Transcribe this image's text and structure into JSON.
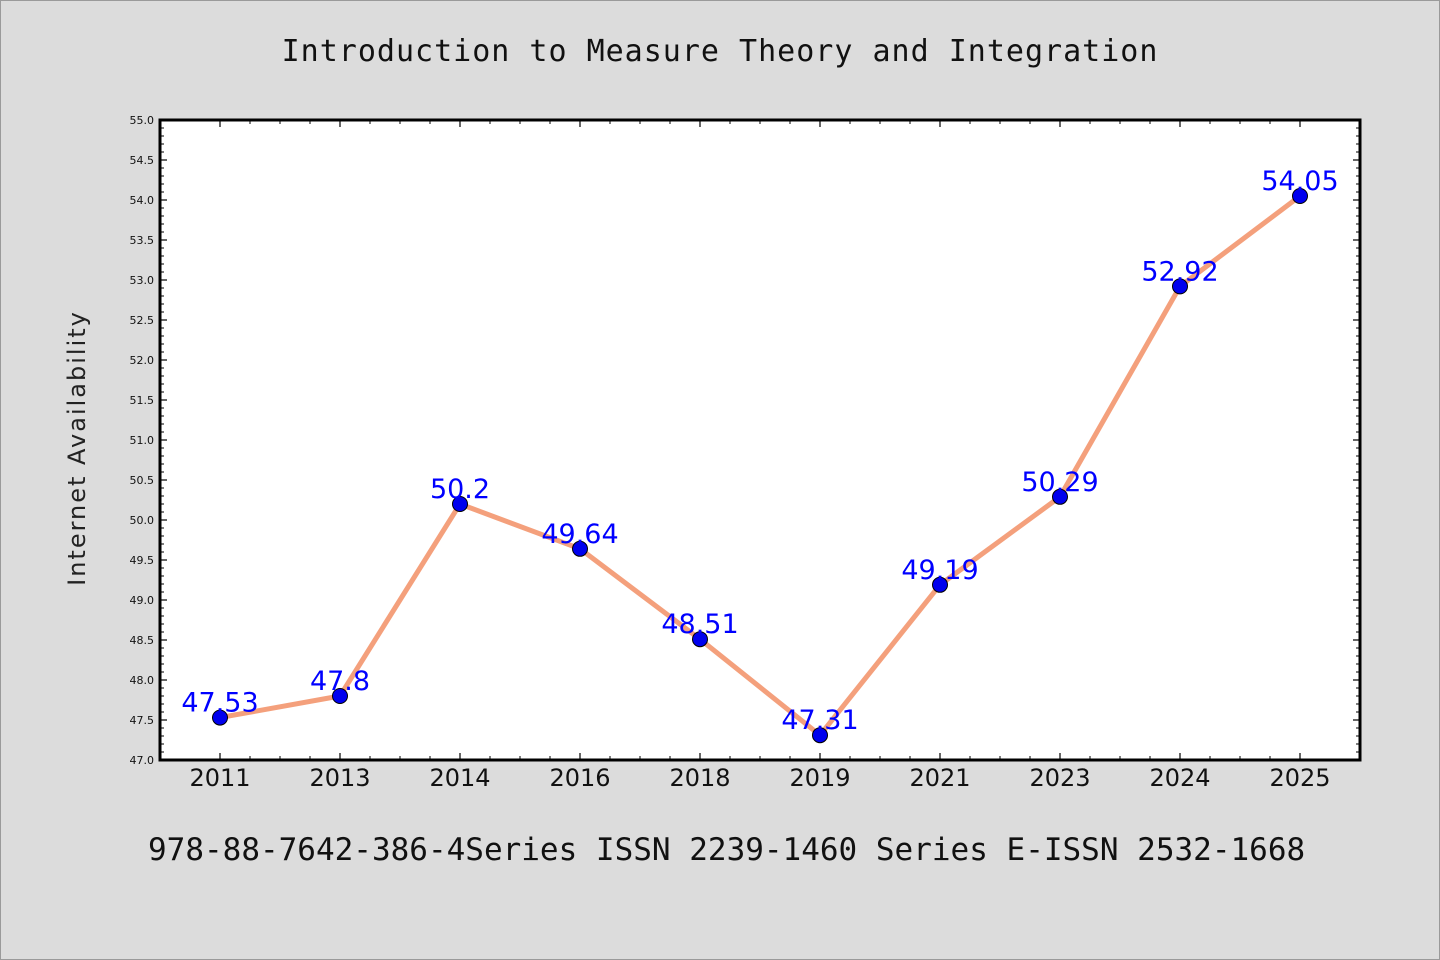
{
  "chart_data": {
    "type": "line",
    "title": "Introduction to Measure Theory and Integration",
    "ylabel": "Internet Availability",
    "xlabel": "",
    "categories": [
      "2011",
      "2013",
      "2014",
      "2016",
      "2018",
      "2019",
      "2021",
      "2023",
      "2024",
      "2025"
    ],
    "values": [
      47.53,
      47.8,
      50.2,
      49.64,
      48.51,
      47.31,
      49.19,
      50.29,
      52.92,
      54.05
    ],
    "data_labels": [
      "47.53",
      "47.8",
      "50.2",
      "49.64",
      "48.51",
      "47.31",
      "49.19",
      "50.29",
      "52.92",
      "54.05"
    ],
    "ylim": [
      47.0,
      55.0
    ],
    "yticks": [
      "47.0",
      "47.5",
      "48.0",
      "48.5",
      "49.0",
      "49.5",
      "50.0",
      "50.5",
      "51.0",
      "51.5",
      "52.0",
      "52.5",
      "53.0",
      "53.5",
      "54.0",
      "54.5",
      "55.0"
    ],
    "grid": false,
    "legend": "none",
    "line_color": "#f4a07c",
    "marker_color": "#0000ee",
    "label_color": "#0000ff"
  },
  "footer": "978-88-7642-386-4Series ISSN 2239-1460 Series E-ISSN 2532-1668"
}
